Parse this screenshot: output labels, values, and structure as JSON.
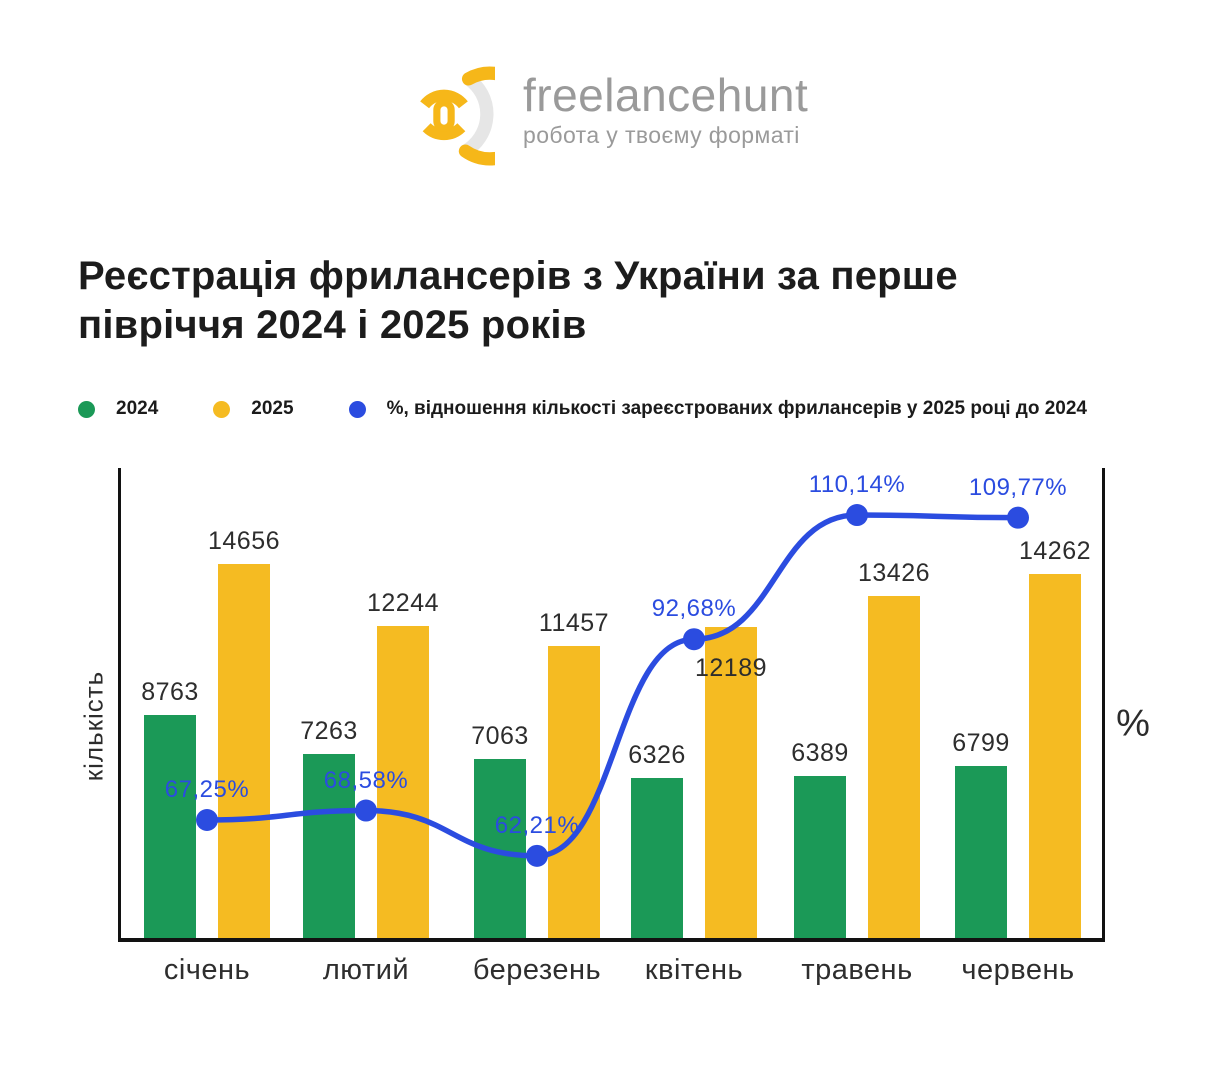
{
  "logo": {
    "brand": "freelancehunt",
    "tagline": "робота у твоєму форматі",
    "icon_yellow": "#f6b719",
    "icon_gray": "#e6e6e6"
  },
  "title": "Реєстрація фрилансерів з України за перше півріччя 2024 і 2025 років",
  "legend": [
    {
      "label": "2024",
      "color": "#1b9957"
    },
    {
      "label": "2025",
      "color": "#f5bb22"
    },
    {
      "label": "%, відношення кількості зареєстрованих фрилансерів у 2025 році до 2024",
      "color": "#2b4ce0"
    }
  ],
  "chart_data": {
    "type": "bar",
    "title": "Реєстрація фрилансерів з України за перше півріччя 2024 і 2025 років",
    "categories": [
      "січень",
      "лютий",
      "березень",
      "квітень",
      "травень",
      "червень"
    ],
    "series": [
      {
        "name": "2024",
        "type": "bar",
        "color": "#1b9957",
        "values": [
          8763,
          7263,
          7063,
          6326,
          6389,
          6799
        ],
        "value_labels": [
          "8763",
          "7263",
          "7063",
          "6326",
          "6389",
          "6799"
        ]
      },
      {
        "name": "2025",
        "type": "bar",
        "color": "#f5bb22",
        "values": [
          14656,
          12244,
          11457,
          12189,
          13426,
          14262
        ],
        "value_labels": [
          "14656",
          "12244",
          "11457",
          "12189",
          "13426",
          "14262"
        ]
      },
      {
        "name": "%, відношення кількості зареєстрованих фрилансерів у 2025 році до 2024",
        "type": "line",
        "color": "#2b4ce0",
        "values": [
          67.25,
          68.58,
          62.21,
          92.68,
          110.14,
          109.77
        ],
        "value_labels": [
          "67,25%",
          "68,58%",
          "62,21%",
          "92,68%",
          "110,14%",
          "109,77%"
        ]
      }
    ],
    "ylabel_left": "кількість",
    "ylabel_right": "%",
    "ylim_counts": [
      0,
      18400
    ],
    "grid": false,
    "legend_position": "top",
    "axis_color": "#121212"
  }
}
